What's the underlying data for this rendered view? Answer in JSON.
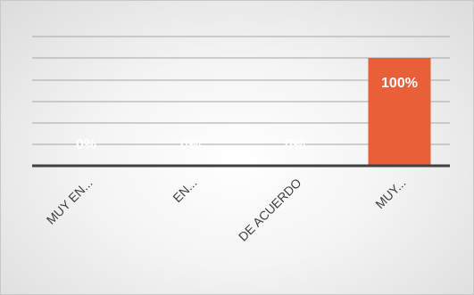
{
  "chart_data": {
    "type": "bar",
    "categories": [
      "MUY EN...",
      "EN...",
      "DE ACUERDO",
      "MUY..."
    ],
    "values": [
      0,
      0,
      0,
      100
    ],
    "data_labels": [
      "0%",
      "0%",
      "0%",
      "100%"
    ],
    "ylim": [
      0,
      100
    ],
    "grid": true,
    "bar_color": "#e8603a",
    "label_color": "#ffffff",
    "axis_color": "#404040",
    "gridline_color": "#a6a6a6",
    "title": "",
    "xlabel": "",
    "ylabel": ""
  }
}
